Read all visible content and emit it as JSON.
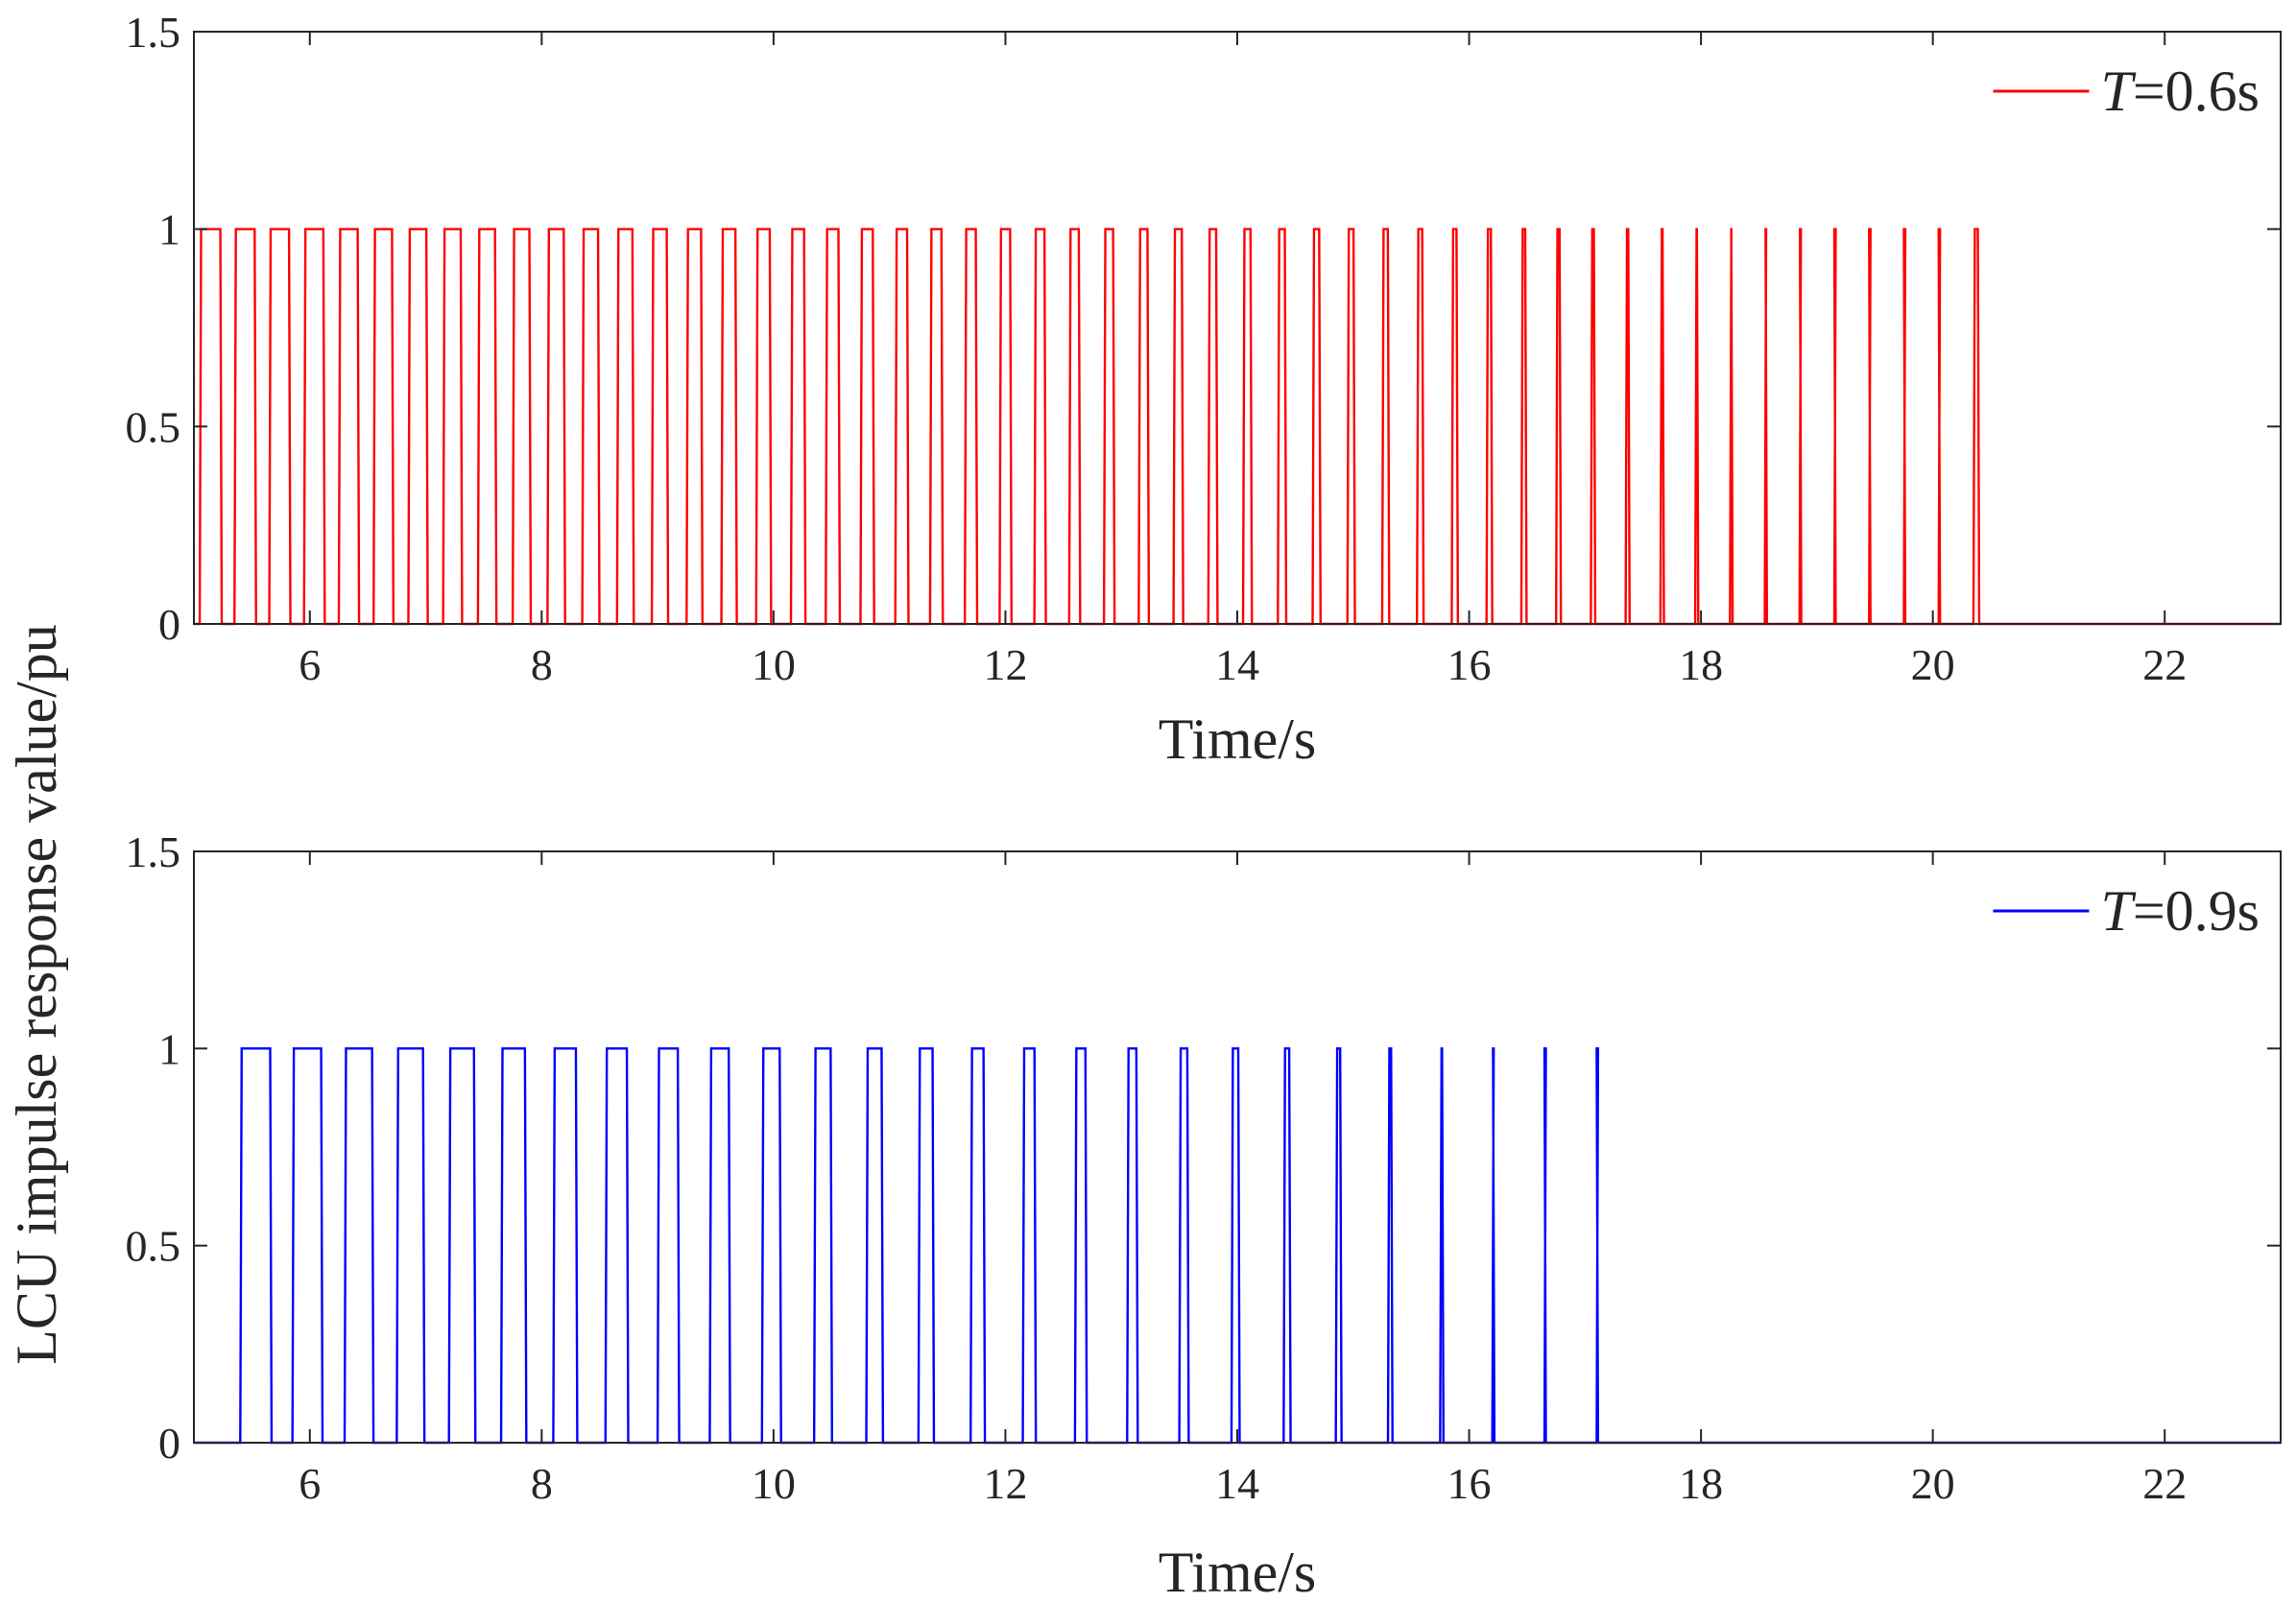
{
  "figure": {
    "ylabel": "LCU impulse response value/pu"
  },
  "chart_data": [
    {
      "type": "line",
      "title": "",
      "xlabel": "Time/s",
      "ylabel": "LCU impulse response value/pu",
      "xlim": [
        5,
        23
      ],
      "ylim": [
        0,
        1.5
      ],
      "xticks": [
        "6",
        "8",
        "10",
        "12",
        "14",
        "16",
        "18",
        "20",
        "22"
      ],
      "yticks": [
        "0",
        "0.5",
        "1",
        "1.5"
      ],
      "grid": false,
      "legend_position": "top-right",
      "series": [
        {
          "name": "T=0.6s",
          "legend_var": "T",
          "legend_rest": "=0.6s",
          "color": "#ff0000",
          "waveform": "pulse-train",
          "period": 0.3,
          "first_rise": 5.05,
          "first_width": 0.19,
          "width_step": -0.0038,
          "pulse_count": 52,
          "last_fall": 20.4,
          "high": 1,
          "low": 0
        }
      ]
    },
    {
      "type": "line",
      "title": "",
      "xlabel": "Time/s",
      "ylabel": "LCU impulse response value/pu",
      "xlim": [
        5,
        23
      ],
      "ylim": [
        0,
        1.5
      ],
      "xticks": [
        "6",
        "8",
        "10",
        "12",
        "14",
        "16",
        "18",
        "20",
        "22"
      ],
      "yticks": [
        "0",
        "0.5",
        "1",
        "1.5"
      ],
      "grid": false,
      "legend_position": "top-right",
      "series": [
        {
          "name": "T=0.9s",
          "legend_var": "T",
          "legend_rest": "=0.9s",
          "color": "#0000ff",
          "waveform": "pulse-train",
          "period": 0.45,
          "first_rise": 5.4,
          "first_width": 0.27,
          "width_step": -0.0105,
          "pulse_count": 27,
          "last_fall": 17.1,
          "high": 1,
          "low": 0
        }
      ]
    }
  ]
}
